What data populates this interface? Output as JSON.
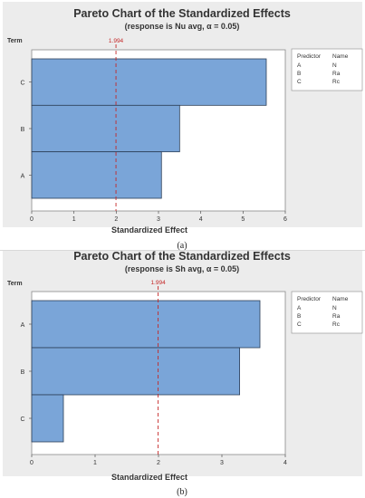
{
  "colors": {
    "bar_fill": "#7aa5d8",
    "bar_stroke": "#2c3e57",
    "ref_line": "#c42828",
    "plot_bg": "#ffffff",
    "outer_bg": "#ececec"
  },
  "chart_data": [
    {
      "type": "bar",
      "orientation": "horizontal",
      "title": "Pareto Chart of the Standardized Effects",
      "subtitle": "(response is Nu avg, α = 0.05)",
      "xlabel": "Standardized Effect",
      "ylabel": "Term",
      "categories": [
        "C",
        "B",
        "A"
      ],
      "values": [
        5.55,
        3.5,
        3.07
      ],
      "xlim": [
        0,
        6
      ],
      "xticks": [
        "0",
        "1",
        "2",
        "3",
        "4",
        "5",
        "6"
      ],
      "reference_line": {
        "value": 1.994,
        "label": "1.994"
      },
      "legend": {
        "headers": [
          "Predictor",
          "Name"
        ],
        "rows": [
          [
            "A",
            "N"
          ],
          [
            "B",
            "Ra"
          ],
          [
            "C",
            "Rc"
          ]
        ]
      },
      "caption": "(a)"
    },
    {
      "type": "bar",
      "orientation": "horizontal",
      "title": "Pareto Chart of the Standardized Effects",
      "subtitle": "(response is Sh avg, α = 0.05)",
      "xlabel": "Standardized Effect",
      "ylabel": "Term",
      "categories": [
        "A",
        "B",
        "C"
      ],
      "values": [
        3.6,
        3.28,
        0.5
      ],
      "xlim": [
        0,
        4
      ],
      "xticks": [
        "0",
        "1",
        "2",
        "3",
        "4"
      ],
      "reference_line": {
        "value": 1.994,
        "label": "1.994"
      },
      "legend": {
        "headers": [
          "Predictor",
          "Name"
        ],
        "rows": [
          [
            "A",
            "N"
          ],
          [
            "B",
            "Ra"
          ],
          [
            "C",
            "Rc"
          ]
        ]
      },
      "caption": "(b)"
    }
  ]
}
